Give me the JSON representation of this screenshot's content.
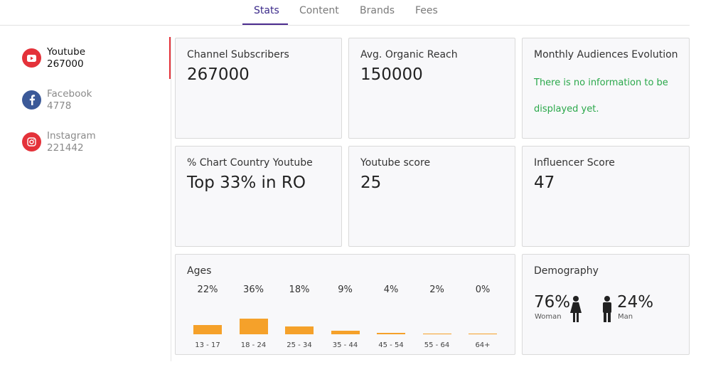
{
  "tabs": [
    {
      "label": "Stats",
      "active": true
    },
    {
      "label": "Content",
      "active": false
    },
    {
      "label": "Brands",
      "active": false
    },
    {
      "label": "Fees",
      "active": false
    }
  ],
  "sidebar": {
    "items": [
      {
        "name": "Youtube",
        "count": "267000",
        "icon": "youtube-icon",
        "color": "#e4323a"
      },
      {
        "name": "Facebook",
        "count": "4778",
        "icon": "facebook-icon",
        "color": "#3b5998"
      },
      {
        "name": "Instagram",
        "count": "221442",
        "icon": "instagram-icon",
        "color": "#e4323a"
      }
    ]
  },
  "cards": {
    "subscribers": {
      "title": "Channel Subscribers",
      "value": "267000"
    },
    "reach": {
      "title": "Avg. Organic Reach",
      "value": "150000"
    },
    "evolution": {
      "title": "Monthly Audiences Evolution",
      "note": "There is no information to be displayed yet."
    },
    "country": {
      "title": "% Chart Country Youtube",
      "value": "Top 33% in RO"
    },
    "youtube_score": {
      "title": "Youtube score",
      "value": "25"
    },
    "influencer_score": {
      "title": "Influencer Score",
      "value": "47"
    }
  },
  "ages": {
    "title": "Ages",
    "groups": [
      {
        "label": "13 - 17",
        "pct": "22%",
        "value": 22
      },
      {
        "label": "18 - 24",
        "pct": "36%",
        "value": 36
      },
      {
        "label": "25 - 34",
        "pct": "18%",
        "value": 18
      },
      {
        "label": "35 - 44",
        "pct": "9%",
        "value": 9
      },
      {
        "label": "45 - 54",
        "pct": "4%",
        "value": 4
      },
      {
        "label": "55 - 64",
        "pct": "2%",
        "value": 2
      },
      {
        "label": "64+",
        "pct": "0%",
        "value": 0
      }
    ],
    "bar_color": "#f5a12a"
  },
  "demography": {
    "title": "Demography",
    "woman": {
      "pct": "76%",
      "label": "Woman"
    },
    "man": {
      "pct": "24%",
      "label": "Man"
    }
  },
  "colors": {
    "accent": "#4b2c8f",
    "active_indicator": "#e4323a",
    "note_green": "#2aa84a"
  }
}
